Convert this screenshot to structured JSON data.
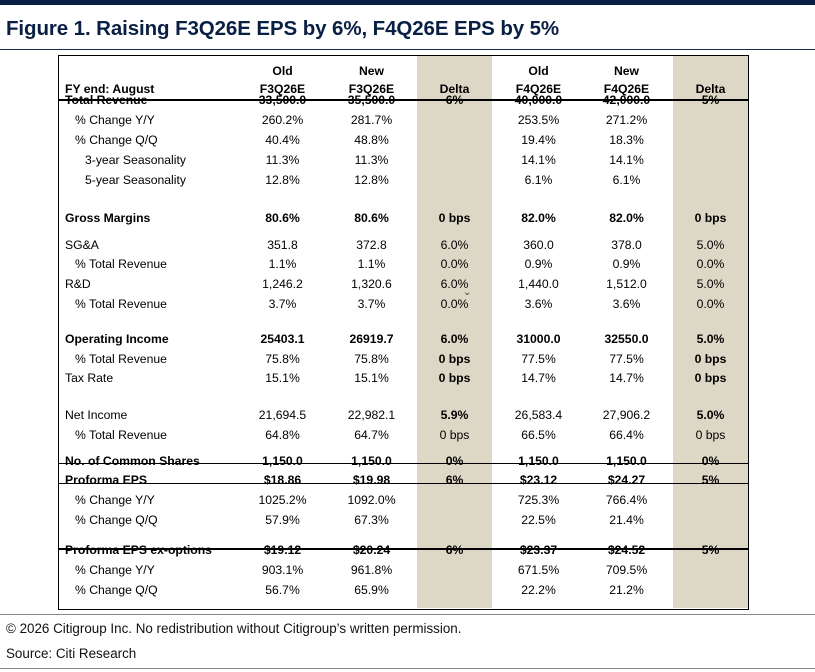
{
  "figure_title": "Figure 1. Raising F3Q26E EPS by 6%, F4Q26E EPS by 5%",
  "table": {
    "header_row1": [
      "",
      "Old",
      "New",
      "",
      "Old",
      "New",
      ""
    ],
    "header_row2": [
      "FY end: August",
      "F3Q26E",
      "F3Q26E",
      "Delta",
      "F4Q26E",
      "F4Q26E",
      "Delta"
    ],
    "rows": [
      [
        "Total Revenue",
        "33,500.0",
        "35,500.0",
        "6%",
        "40,000.0",
        "42,000.0",
        "5%"
      ],
      [
        "% Change Y/Y",
        "260.2%",
        "281.7%",
        "",
        "253.5%",
        "271.2%",
        ""
      ],
      [
        "% Change Q/Q",
        "40.4%",
        "48.8%",
        "",
        "19.4%",
        "18.3%",
        ""
      ],
      [
        "3-year Seasonality",
        "11.3%",
        "11.3%",
        "",
        "14.1%",
        "14.1%",
        ""
      ],
      [
        "5-year Seasonality",
        "12.8%",
        "12.8%",
        "",
        "6.1%",
        "6.1%",
        ""
      ],
      [
        "Gross Margins",
        "80.6%",
        "80.6%",
        "0 bps",
        "82.0%",
        "82.0%",
        "0 bps"
      ],
      [
        "SG&A",
        "351.8",
        "372.8",
        "6.0%",
        "360.0",
        "378.0",
        "5.0%"
      ],
      [
        "% Total Revenue",
        "1.1%",
        "1.1%",
        "0.0%",
        "0.9%",
        "0.9%",
        "0.0%"
      ],
      [
        "R&D",
        "1,246.2",
        "1,320.6",
        "6.0%",
        "1,440.0",
        "1,512.0",
        "5.0%"
      ],
      [
        "% Total Revenue",
        "3.7%",
        "3.7%",
        "0.0%",
        "3.6%",
        "3.6%",
        "0.0%"
      ],
      [
        "Operating Income",
        "25403.1",
        "26919.7",
        "6.0%",
        "31000.0",
        "32550.0",
        "5.0%"
      ],
      [
        "% Total Revenue",
        "75.8%",
        "75.8%",
        "0 bps",
        "77.5%",
        "77.5%",
        "0 bps"
      ],
      [
        "Tax Rate",
        "15.1%",
        "15.1%",
        "0 bps",
        "14.7%",
        "14.7%",
        "0 bps"
      ],
      [
        "Net Income",
        "21,694.5",
        "22,982.1",
        "5.9%",
        "26,583.4",
        "27,906.2",
        "5.0%"
      ],
      [
        "% Total Revenue",
        "64.8%",
        "64.7%",
        "0 bps",
        "66.5%",
        "66.4%",
        "0 bps"
      ],
      [
        "No. of Common Shares",
        "1,150.0",
        "1,150.0",
        "0%",
        "1,150.0",
        "1,150.0",
        "0%"
      ],
      [
        "Proforma EPS",
        "$18.86",
        "$19.98",
        "6%",
        "$23.12",
        "$24.27",
        "5%"
      ],
      [
        "% Change Y/Y",
        "1025.2%",
        "1092.0%",
        "",
        "725.3%",
        "766.4%",
        ""
      ],
      [
        "% Change Q/Q",
        "57.9%",
        "67.3%",
        "",
        "22.5%",
        "21.4%",
        ""
      ],
      [
        "Proforma EPS ex-options",
        "$19.12",
        "$20.24",
        "6%",
        "$23.37",
        "$24.52",
        "5%"
      ],
      [
        "% Change Y/Y",
        "903.1%",
        "961.8%",
        "",
        "671.5%",
        "709.5%",
        ""
      ],
      [
        "% Change Q/Q",
        "56.7%",
        "65.9%",
        "",
        "22.2%",
        "21.2%",
        ""
      ]
    ]
  },
  "copyright": "© 2026 Citigroup Inc. No redistribution without Citigroup’s written permission.",
  "source": "Source: Citi Research",
  "colors": {
    "title_navy": "#0a1f44",
    "delta_band": "#ddd7c6"
  }
}
